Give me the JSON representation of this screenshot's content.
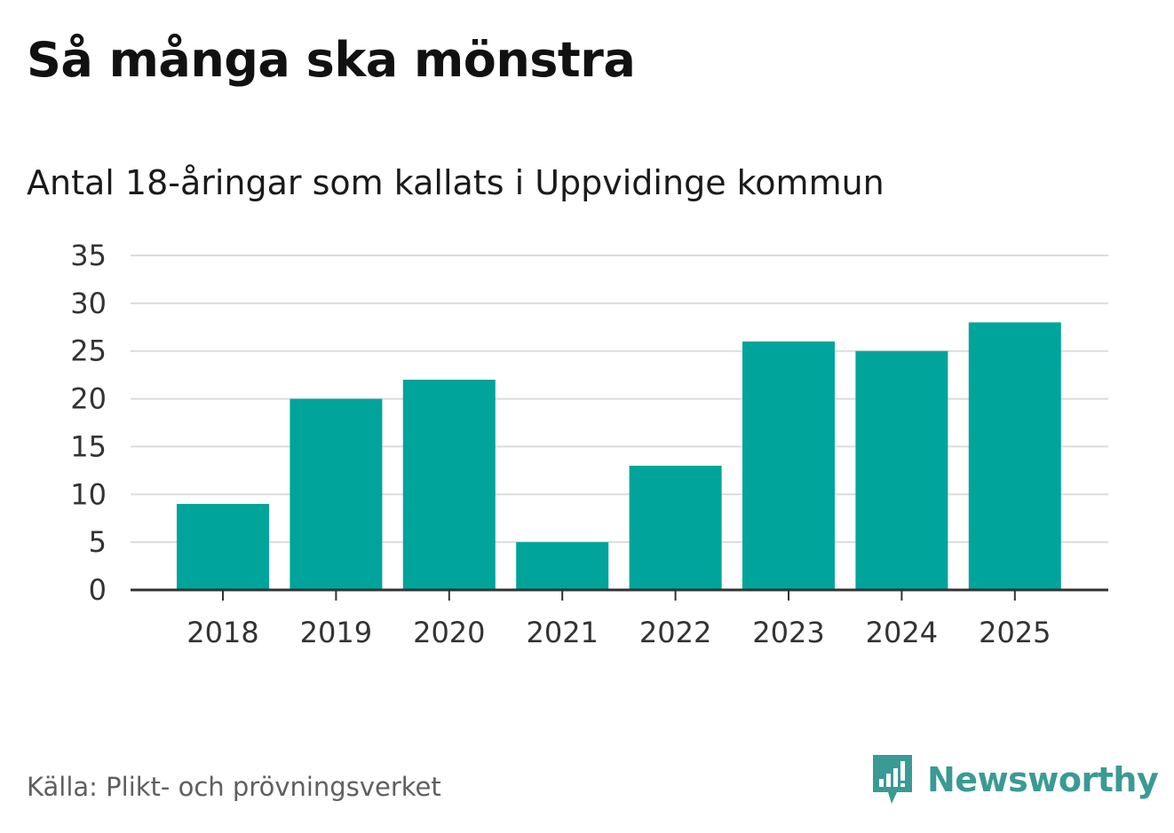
{
  "header": {
    "title": "Så många ska mönstra",
    "subtitle": "Antal 18-åringar som kallats i Uppvidinge kommun"
  },
  "footer": {
    "source": "Källa: Plikt- och prövningsverket",
    "brand": "Newsworthy"
  },
  "colors": {
    "bar": "#00a49b",
    "grid": "#dcdcdc",
    "axis": "#333333",
    "brand": "#3a9a94"
  },
  "icons": {
    "brand_logo": "newsworthy-logo-icon"
  },
  "chart_data": {
    "type": "bar",
    "title": "Så många ska mönstra",
    "subtitle": "Antal 18-åringar som kallats i Uppvidinge kommun",
    "xlabel": "",
    "ylabel": "",
    "categories": [
      "2018",
      "2019",
      "2020",
      "2021",
      "2022",
      "2023",
      "2024",
      "2025"
    ],
    "values": [
      9,
      20,
      22,
      5,
      13,
      26,
      25,
      28
    ],
    "ylim": [
      0,
      35
    ],
    "yticks": [
      "0",
      "5",
      "10",
      "15",
      "20",
      "25",
      "30",
      "35"
    ],
    "grid": true,
    "legend": "none"
  }
}
